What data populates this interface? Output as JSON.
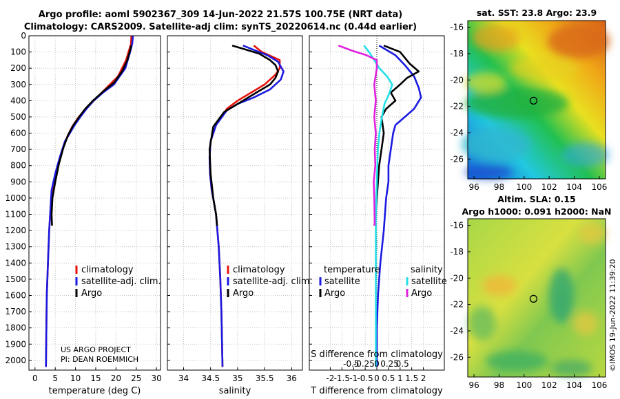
{
  "header": {
    "title_line1": "Argo profile: aoml 5902367_309 14-Jun-2022 21.57S 100.75E (NRT data)",
    "title_line2": "Climatology: CARS2009. Satellite-adj clim: synTS_20220614.nc (0.44d earlier)"
  },
  "credits": {
    "project": "US ARGO PROJECT",
    "pi": "PI: DEAN ROEMMICH",
    "stamp": "©IMOS 19-Jun-2022 11:39:20"
  },
  "colors": {
    "climatology": "#e8140c",
    "satellite": "#1a1ae0",
    "argo": "#000000",
    "sat_salinity": "#22e0e8",
    "argo_salinity": "#e020e0"
  },
  "chart_data": [
    {
      "type": "line",
      "id": "temperature",
      "xlabel": "temperature (deg C)",
      "ylabel": "",
      "xlim": [
        -1.5,
        31
      ],
      "ylim": [
        2060,
        0
      ],
      "xticks": [
        0,
        5,
        10,
        15,
        20,
        25,
        30
      ],
      "yticks": [
        0,
        100,
        200,
        300,
        400,
        500,
        600,
        700,
        800,
        900,
        1000,
        1100,
        1200,
        1300,
        1400,
        1500,
        1600,
        1700,
        1800,
        1900,
        2000
      ],
      "legend": [
        "climatology",
        "satellite-adj. clim.",
        "Argo"
      ],
      "series": [
        {
          "name": "climatology",
          "color": "#e8140c",
          "x": [
            23.8,
            23.7,
            22.5,
            20.5,
            18.5,
            16.5,
            14.5,
            12.6,
            10.8,
            9.2,
            8.0,
            6.8,
            5.7,
            4.8,
            4.0,
            3.5,
            3.2,
            2.9,
            2.8,
            2.7
          ],
          "y": [
            0,
            50,
            150,
            250,
            300,
            350,
            400,
            450,
            500,
            560,
            620,
            700,
            800,
            900,
            1000,
            1200,
            1400,
            1600,
            1800,
            2040
          ]
        },
        {
          "name": "satellite-adj. clim.",
          "color": "#1a1ae0",
          "x": [
            24.2,
            24.0,
            23.5,
            22.3,
            19.5,
            16.8,
            14.5,
            12.7,
            11.2,
            9.8,
            8.6,
            7.4,
            6.1,
            5.0,
            4.1,
            3.5,
            3.2,
            2.9,
            2.8,
            2.7
          ],
          "y": [
            0,
            50,
            100,
            200,
            300,
            350,
            400,
            450,
            500,
            550,
            600,
            650,
            750,
            850,
            950,
            1200,
            1400,
            1600,
            1800,
            2040
          ]
        },
        {
          "name": "Argo",
          "color": "#000000",
          "x": [
            23.7,
            23.6,
            22.8,
            21.5,
            19.5,
            17.0,
            14.3,
            12.4,
            10.9,
            9.5,
            8.2,
            7.0,
            5.9,
            5.0,
            4.3,
            4.1,
            4.2
          ],
          "y": [
            60,
            80,
            150,
            220,
            290,
            340,
            400,
            450,
            500,
            550,
            610,
            690,
            790,
            900,
            1000,
            1100,
            1170
          ]
        }
      ]
    },
    {
      "type": "line",
      "id": "salinity",
      "xlabel": "salinity",
      "ylabel": "",
      "xlim": [
        33.7,
        36.2
      ],
      "ylim": [
        2060,
        0
      ],
      "xticks": [
        34,
        34.5,
        35,
        35.5,
        36
      ],
      "legend": [
        "climatology",
        "satellite-adj. clim.",
        "Argo"
      ],
      "series": [
        {
          "name": "climatology",
          "color": "#e8140c",
          "x": [
            35.3,
            35.45,
            35.65,
            35.78,
            35.78,
            35.7,
            35.5,
            35.25,
            35.0,
            34.8,
            34.6,
            34.5,
            34.48,
            34.49,
            34.52,
            34.6,
            34.65,
            34.68,
            34.7,
            34.72
          ],
          "y": [
            60,
            100,
            130,
            150,
            200,
            240,
            300,
            350,
            400,
            450,
            550,
            650,
            750,
            850,
            950,
            1100,
            1300,
            1500,
            1700,
            2040
          ]
        },
        {
          "name": "satellite-adj. clim.",
          "color": "#1a1ae0",
          "x": [
            35.1,
            35.25,
            35.55,
            35.75,
            35.85,
            35.8,
            35.6,
            35.3,
            35.0,
            34.8,
            34.6,
            34.5,
            34.48,
            34.49,
            34.52,
            34.6,
            34.65,
            34.68,
            34.7,
            34.72
          ],
          "y": [
            60,
            80,
            120,
            160,
            220,
            270,
            330,
            380,
            420,
            460,
            550,
            650,
            750,
            850,
            950,
            1100,
            1300,
            1500,
            1700,
            2040
          ]
        },
        {
          "name": "Argo",
          "color": "#000000",
          "x": [
            34.9,
            35.1,
            35.4,
            35.6,
            35.7,
            35.75,
            35.7,
            35.6,
            35.3,
            35.0,
            34.75,
            34.55,
            34.48,
            34.5,
            34.55,
            34.6,
            34.62
          ],
          "y": [
            60,
            80,
            110,
            150,
            180,
            220,
            260,
            300,
            360,
            420,
            470,
            560,
            700,
            850,
            1000,
            1100,
            1170
          ]
        }
      ]
    },
    {
      "type": "line",
      "id": "difference",
      "xlabel": "T difference from climatology",
      "x2label": "S difference from climatology",
      "xlim": [
        -2.9,
        2.9
      ],
      "ylim": [
        2060,
        0
      ],
      "xticks": [
        -2,
        -1.5,
        -1,
        -0.5,
        0,
        0.5,
        1,
        1.5,
        2
      ],
      "xticklabels": [
        "-2",
        "-1.5",
        "-1",
        "-0.5",
        "0",
        "0.5",
        "1",
        "1.5",
        "2"
      ],
      "x2ticks": [
        -0.5,
        -0.25,
        0,
        0.25,
        0.5
      ],
      "x2ticklabels": [
        "-0.5",
        "-0.25",
        "0",
        "0.25",
        "0.5"
      ],
      "legend_groups": {
        "temperature": {
          "title": "temperature",
          "items": [
            "satellite",
            "Argo"
          ]
        },
        "salinity": {
          "title": "salinity",
          "items": [
            "satellite",
            "Argo"
          ]
        }
      },
      "series": [
        {
          "name": "T satellite",
          "color": "#1a1ae0",
          "x": [
            0.1,
            0.8,
            1.2,
            1.6,
            1.8,
            1.9,
            1.6,
            1.2,
            0.8,
            0.7,
            0.6,
            0.5,
            0.5,
            0.4,
            0.35,
            0.3,
            0.15,
            0.05,
            0.0,
            0.0
          ],
          "y": [
            60,
            120,
            180,
            250,
            320,
            380,
            450,
            500,
            550,
            600,
            700,
            800,
            900,
            1000,
            1100,
            1200,
            1400,
            1600,
            1800,
            2040
          ]
        },
        {
          "name": "T Argo",
          "color": "#000000",
          "x": [
            0.3,
            1.0,
            1.4,
            1.8,
            1.3,
            1.0,
            0.6,
            0.8,
            0.4,
            0.2,
            0.3,
            0.2,
            0.1,
            0.05,
            0.0,
            -0.05,
            -0.1
          ],
          "y": [
            60,
            100,
            170,
            220,
            260,
            300,
            350,
            400,
            450,
            500,
            600,
            700,
            800,
            900,
            1000,
            1100,
            1170
          ]
        },
        {
          "name": "S satellite",
          "color": "#22e0e8",
          "x": [
            -0.25,
            -0.15,
            -0.05,
            0.05,
            0.2,
            0.3,
            0.25,
            0.15,
            0.1,
            0.05,
            0.02,
            0.0,
            -0.02,
            -0.02,
            -0.02,
            -0.02
          ],
          "y": [
            60,
            100,
            150,
            200,
            250,
            300,
            350,
            420,
            500,
            600,
            700,
            900,
            1100,
            1400,
            1700,
            2040
          ]
        },
        {
          "name": "S Argo",
          "color": "#e020e0",
          "x": [
            -0.75,
            -0.5,
            -0.2,
            0.0,
            0.0,
            -0.05,
            -0.02,
            -0.05,
            -0.02,
            -0.04,
            -0.03,
            -0.06,
            -0.05,
            -0.04
          ],
          "y": [
            60,
            90,
            120,
            150,
            200,
            300,
            400,
            500,
            600,
            700,
            800,
            900,
            1000,
            1170
          ]
        }
      ]
    },
    {
      "type": "heatmap",
      "id": "sst_map",
      "title": "sat. SST: 23.8 Argo: 23.9",
      "xlim": [
        95.5,
        106.5
      ],
      "ylim": [
        -27.5,
        -15.5
      ],
      "xticks": [
        96,
        98,
        100,
        102,
        104,
        106
      ],
      "yticks": [
        -16,
        -18,
        -20,
        -22,
        -24,
        -26
      ],
      "marker": {
        "lon": 100.75,
        "lat": -21.57
      }
    },
    {
      "type": "heatmap",
      "id": "sla_map",
      "title_line1": "Altim. SLA: 0.15",
      "title_line2": "Argo h1000: 0.091 h2000: NaN",
      "xlim": [
        95.5,
        106.5
      ],
      "ylim": [
        -27.5,
        -15.5
      ],
      "xticks": [
        96,
        98,
        100,
        102,
        104,
        106
      ],
      "yticks": [
        -16,
        -18,
        -20,
        -22,
        -24,
        -26
      ],
      "marker": {
        "lon": 100.75,
        "lat": -21.57
      }
    }
  ]
}
